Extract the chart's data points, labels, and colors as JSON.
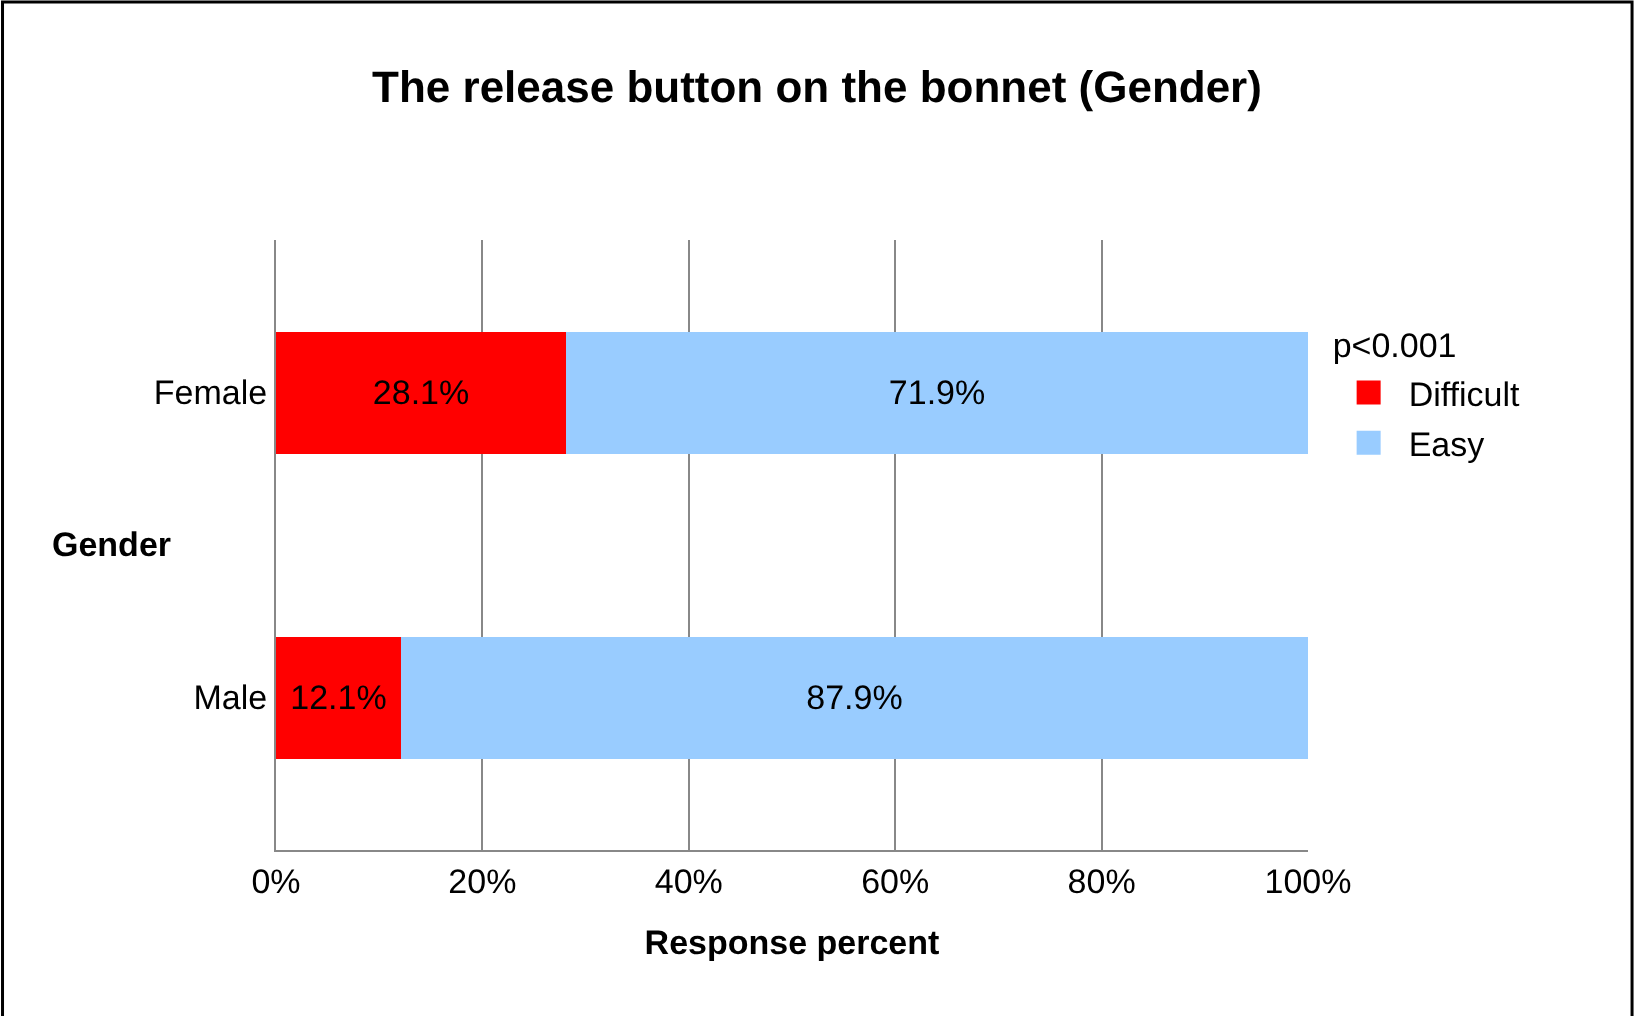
{
  "chart_data": {
    "type": "bar",
    "orientation": "horizontal",
    "stacked": true,
    "title": "The release button on the bonnet (Gender)",
    "xlabel": "Response percent",
    "ylabel": "Gender",
    "categories": [
      "Female",
      "Male"
    ],
    "series": [
      {
        "name": "Difficult",
        "color": "#ff0000",
        "values": [
          28.1,
          12.1
        ],
        "value_labels": [
          "28.1%",
          "12.1%"
        ]
      },
      {
        "name": "Easy",
        "color": "#99ccff",
        "values": [
          71.9,
          87.9
        ],
        "value_labels": [
          "71.9%",
          "87.9%"
        ]
      }
    ],
    "xlim": [
      0,
      100
    ],
    "xticks": [
      {
        "value": 0,
        "label": "0%"
      },
      {
        "value": 20,
        "label": "20%"
      },
      {
        "value": 40,
        "label": "40%"
      },
      {
        "value": 60,
        "label": "60%"
      },
      {
        "value": 80,
        "label": "80%"
      },
      {
        "value": 100,
        "label": "100%"
      }
    ],
    "grid": "x",
    "legend": "right",
    "legend_title": "p<0.001"
  }
}
